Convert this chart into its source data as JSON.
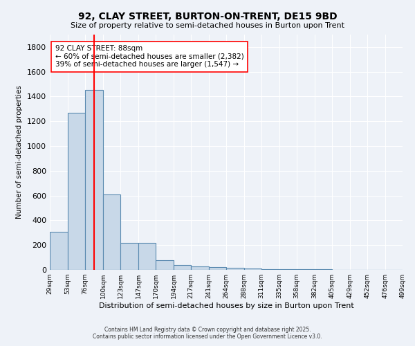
{
  "title": "92, CLAY STREET, BURTON-ON-TRENT, DE15 9BD",
  "subtitle": "Size of property relative to semi-detached houses in Burton upon Trent",
  "xlabel": "Distribution of semi-detached houses by size in Burton upon Trent",
  "ylabel": "Number of semi-detached properties",
  "bar_color": "#c8d8e8",
  "bar_edge_color": "#5a8ab0",
  "background_color": "#eef2f8",
  "grid_color": "white",
  "annotation_text": "92 CLAY STREET: 88sqm\n← 60% of semi-detached houses are smaller (2,382)\n39% of semi-detached houses are larger (1,547) →",
  "vline_x": 88,
  "vline_color": "red",
  "bins": [
    29,
    53,
    76,
    100,
    123,
    147,
    170,
    194,
    217,
    241,
    264,
    288,
    311,
    335,
    358,
    382,
    405,
    429,
    452,
    476,
    499
  ],
  "bar_heights": [
    305,
    1270,
    1455,
    610,
    220,
    220,
    80,
    40,
    30,
    20,
    15,
    10,
    8,
    5,
    4,
    3,
    2,
    2,
    1,
    1
  ],
  "ylim": [
    0,
    1900
  ],
  "yticks": [
    0,
    200,
    400,
    600,
    800,
    1000,
    1200,
    1400,
    1600,
    1800
  ],
  "footer": "Contains HM Land Registry data © Crown copyright and database right 2025.\nContains public sector information licensed under the Open Government Licence v3.0.",
  "tick_labels": [
    "29sqm",
    "53sqm",
    "76sqm",
    "100sqm",
    "123sqm",
    "147sqm",
    "170sqm",
    "194sqm",
    "217sqm",
    "241sqm",
    "264sqm",
    "288sqm",
    "311sqm",
    "335sqm",
    "358sqm",
    "382sqm",
    "405sqm",
    "429sqm",
    "452sqm",
    "476sqm",
    "499sqm"
  ]
}
